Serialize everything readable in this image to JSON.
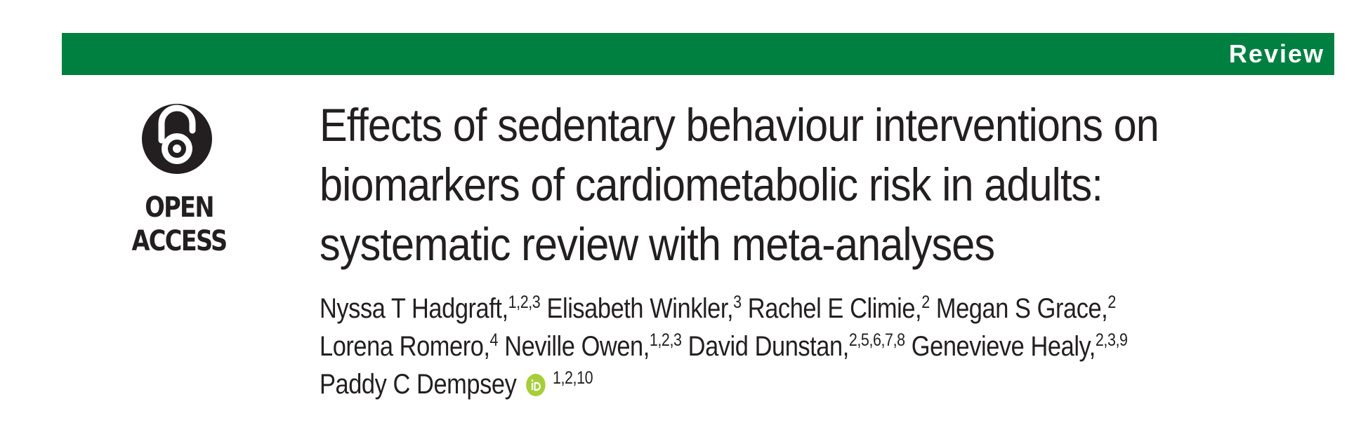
{
  "banner": {
    "label": "Review",
    "color": "#008040"
  },
  "badge": {
    "icon": "open-access-lock-icon",
    "label": "OPEN ACCESS"
  },
  "title": [
    "Effects of sedentary behaviour interventions on",
    "biomarkers of cardiometabolic risk in adults:",
    "systematic review with meta-analyses"
  ],
  "authors": [
    {
      "name": "Nyssa T Hadgraft,",
      "aff": "1,2,3"
    },
    {
      "name": "Elisabeth Winkler,",
      "aff": "3"
    },
    {
      "name": "Rachel E Climie,",
      "aff": "2"
    },
    {
      "name": "Megan S Grace,",
      "aff": "2"
    },
    {
      "name": "Lorena Romero,",
      "aff": "4"
    },
    {
      "name": "Neville Owen,",
      "aff": "1,2,3"
    },
    {
      "name": "David Dunstan,",
      "aff": "2,5,6,7,8"
    },
    {
      "name": "Genevieve Healy,",
      "aff": "2,3,9"
    },
    {
      "name": "Paddy C Dempsey",
      "aff": "1,2,10",
      "orcid_icon": "orcid-icon"
    }
  ]
}
